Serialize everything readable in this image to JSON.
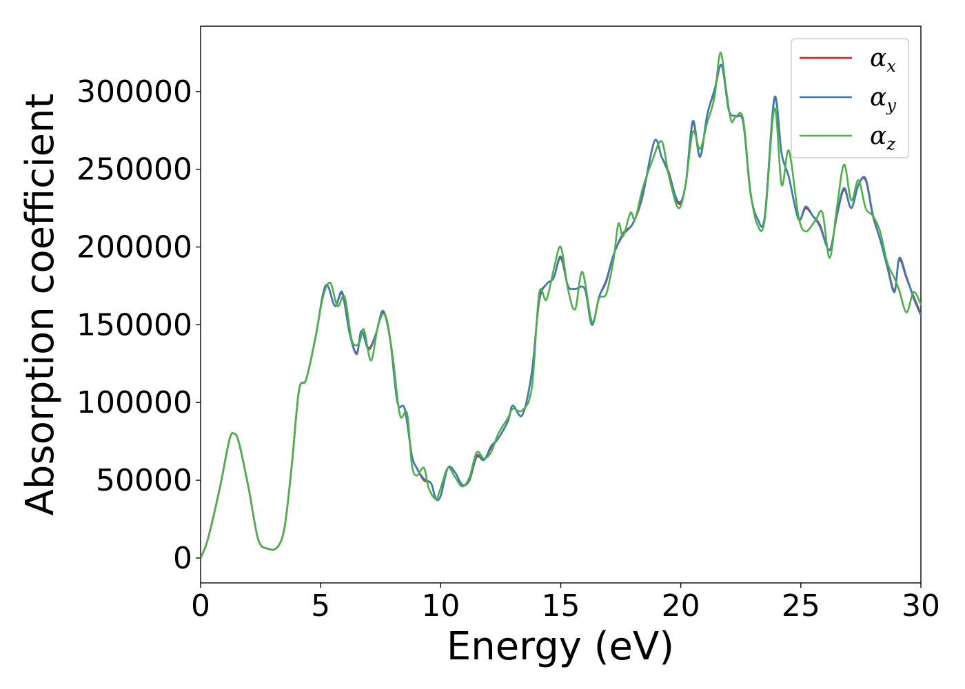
{
  "chart_data": {
    "type": "line",
    "title": "",
    "xlabel": "Energy (eV)",
    "ylabel": "Absorption coefficient",
    "xlim": [
      0,
      30
    ],
    "ylim": [
      -16000,
      342000
    ],
    "xticks": [
      0,
      5,
      10,
      15,
      20,
      25,
      30
    ],
    "xtick_labels": [
      "0",
      "5",
      "10",
      "15",
      "20",
      "25",
      "30"
    ],
    "yticks": [
      0,
      50000,
      100000,
      150000,
      200000,
      250000,
      300000
    ],
    "ytick_labels": [
      "0",
      "50000",
      "100000",
      "150000",
      "200000",
      "250000",
      "300000"
    ],
    "grid": false,
    "legend_position": "top-right",
    "series": [
      {
        "name": "α",
        "subscript": "x",
        "color": "#e41a1c",
        "x": [
          0,
          0.3,
          0.8,
          1.2,
          1.4,
          1.6,
          2.0,
          2.4,
          2.8,
          3.2,
          3.5,
          3.8,
          4.1,
          4.4,
          4.8,
          5.1,
          5.3,
          5.6,
          5.9,
          6.2,
          6.5,
          6.7,
          7.0,
          7.3,
          7.6,
          7.9,
          8.2,
          8.5,
          8.8,
          9.0,
          9.3,
          9.6,
          9.8,
          10.0,
          10.3,
          10.6,
          10.9,
          11.2,
          11.5,
          11.8,
          12.1,
          12.4,
          12.8,
          13.0,
          13.4,
          13.8,
          14.1,
          14.4,
          14.7,
          15.0,
          15.3,
          15.6,
          16.0,
          16.3,
          16.6,
          16.9,
          17.2,
          17.6,
          18.0,
          18.4,
          18.9,
          19.2,
          19.5,
          19.9,
          20.2,
          20.5,
          20.8,
          21.1,
          21.4,
          21.7,
          22.0,
          22.3,
          22.6,
          22.9,
          23.2,
          23.5,
          23.9,
          24.2,
          24.5,
          24.9,
          25.2,
          25.5,
          25.8,
          26.2,
          26.5,
          26.8,
          27.1,
          27.4,
          27.7,
          28.0,
          28.3,
          28.6,
          28.9,
          29.1,
          29.4,
          29.7,
          30.0
        ],
        "values": [
          0,
          12000,
          45000,
          76000,
          80000,
          74000,
          45000,
          12000,
          6000,
          7000,
          20000,
          60000,
          108000,
          115000,
          143000,
          170000,
          175000,
          162000,
          170000,
          145000,
          132000,
          146000,
          135000,
          144000,
          158000,
          140000,
          100000,
          96000,
          66000,
          58000,
          50000,
          48000,
          38000,
          40000,
          58000,
          55000,
          47000,
          50000,
          65000,
          63000,
          71000,
          77000,
          88000,
          98000,
          92000,
          120000,
          165000,
          176000,
          180000,
          193000,
          175000,
          173000,
          173000,
          150000,
          168000,
          178000,
          195000,
          208000,
          215000,
          232000,
          268000,
          258000,
          248000,
          228000,
          240000,
          280000,
          258000,
          285000,
          300000,
          317000,
          288000,
          284000,
          280000,
          235000,
          218000,
          220000,
          295000,
          260000,
          245000,
          218000,
          225000,
          220000,
          214000,
          198000,
          220000,
          237000,
          225000,
          240000,
          243000,
          220000,
          205000,
          188000,
          172000,
          192000,
          180000,
          168000,
          157000
        ]
      },
      {
        "name": "α",
        "subscript": "y",
        "color": "#377eb8",
        "x": [
          0,
          0.3,
          0.8,
          1.2,
          1.4,
          1.6,
          2.0,
          2.4,
          2.8,
          3.2,
          3.5,
          3.8,
          4.1,
          4.4,
          4.8,
          5.1,
          5.3,
          5.6,
          5.9,
          6.2,
          6.5,
          6.7,
          7.0,
          7.3,
          7.6,
          7.9,
          8.2,
          8.5,
          8.8,
          9.0,
          9.3,
          9.6,
          9.8,
          10.0,
          10.3,
          10.6,
          10.9,
          11.2,
          11.5,
          11.8,
          12.1,
          12.4,
          12.8,
          13.0,
          13.4,
          13.8,
          14.1,
          14.4,
          14.7,
          15.0,
          15.3,
          15.6,
          16.0,
          16.3,
          16.6,
          16.9,
          17.2,
          17.6,
          18.0,
          18.4,
          18.9,
          19.2,
          19.5,
          19.9,
          20.2,
          20.5,
          20.8,
          21.1,
          21.4,
          21.7,
          22.0,
          22.3,
          22.6,
          22.9,
          23.2,
          23.5,
          23.9,
          24.2,
          24.5,
          24.9,
          25.2,
          25.5,
          25.8,
          26.2,
          26.5,
          26.8,
          27.1,
          27.4,
          27.7,
          28.0,
          28.3,
          28.6,
          28.9,
          29.1,
          29.4,
          29.7,
          30.0
        ],
        "values": [
          0,
          12000,
          45000,
          76000,
          80000,
          74000,
          45000,
          12000,
          6000,
          7000,
          20000,
          60000,
          108000,
          115000,
          143000,
          170000,
          175000,
          162000,
          171000,
          145000,
          131000,
          146000,
          134000,
          144000,
          159000,
          140000,
          100000,
          96000,
          66000,
          58000,
          51000,
          48000,
          38000,
          40000,
          58000,
          55000,
          47000,
          50000,
          66000,
          63000,
          72000,
          77000,
          88000,
          98000,
          92000,
          120000,
          166000,
          176000,
          180000,
          194000,
          175000,
          173000,
          173000,
          150000,
          168000,
          179000,
          195000,
          209000,
          215000,
          233000,
          268000,
          258000,
          247000,
          229000,
          240000,
          281000,
          258000,
          285000,
          301000,
          317000,
          288000,
          284000,
          280000,
          235000,
          218000,
          220000,
          296000,
          260000,
          245000,
          218000,
          226000,
          220000,
          213000,
          198000,
          221000,
          238000,
          225000,
          240000,
          244000,
          221000,
          205000,
          187000,
          171000,
          193000,
          181000,
          167000,
          156000
        ]
      },
      {
        "name": "α",
        "subscript": "z",
        "color": "#4daf4a",
        "x": [
          0,
          0.3,
          0.8,
          1.2,
          1.4,
          1.6,
          2.0,
          2.4,
          2.8,
          3.2,
          3.5,
          3.8,
          4.1,
          4.4,
          4.8,
          5.1,
          5.4,
          5.7,
          6.0,
          6.3,
          6.6,
          6.8,
          7.1,
          7.4,
          7.7,
          8.0,
          8.3,
          8.6,
          8.8,
          9.0,
          9.3,
          9.5,
          9.8,
          10.0,
          10.3,
          10.6,
          10.9,
          11.2,
          11.5,
          11.8,
          12.1,
          12.4,
          12.8,
          13.0,
          13.4,
          13.8,
          14.1,
          14.4,
          14.7,
          15.0,
          15.3,
          15.6,
          15.9,
          16.3,
          16.6,
          16.9,
          17.2,
          17.4,
          17.6,
          17.9,
          18.1,
          18.4,
          18.8,
          19.2,
          19.5,
          19.9,
          20.2,
          20.5,
          20.8,
          21.1,
          21.4,
          21.65,
          21.9,
          22.1,
          22.3,
          22.6,
          22.9,
          23.2,
          23.5,
          23.9,
          24.2,
          24.5,
          24.9,
          25.2,
          25.6,
          25.9,
          26.2,
          26.5,
          26.8,
          27.1,
          27.4,
          27.7,
          28.0,
          28.3,
          28.6,
          28.9,
          29.1,
          29.4,
          29.7,
          30.0
        ],
        "values": [
          0,
          12000,
          45000,
          76000,
          80000,
          74000,
          45000,
          12000,
          6000,
          7000,
          20000,
          60000,
          108000,
          115000,
          143000,
          168000,
          177000,
          162000,
          168000,
          140000,
          138000,
          147000,
          127000,
          150000,
          156000,
          130000,
          92000,
          93000,
          60000,
          53000,
          58000,
          45000,
          38000,
          45000,
          58000,
          52000,
          46000,
          52000,
          68000,
          64000,
          68000,
          80000,
          90000,
          96000,
          95000,
          110000,
          170000,
          166000,
          185000,
          200000,
          173000,
          160000,
          184000,
          152000,
          167000,
          170000,
          192000,
          215000,
          207000,
          222000,
          218000,
          237000,
          255000,
          268000,
          246000,
          225000,
          240000,
          274000,
          263000,
          280000,
          296000,
          325000,
          300000,
          281000,
          284000,
          282000,
          236000,
          214000,
          218000,
          289000,
          240000,
          262000,
          220000,
          210000,
          217000,
          222000,
          193000,
          225000,
          253000,
          230000,
          243000,
          225000,
          220000,
          210000,
          190000,
          180000,
          172000,
          158000,
          171000,
          163000
        ]
      }
    ]
  }
}
